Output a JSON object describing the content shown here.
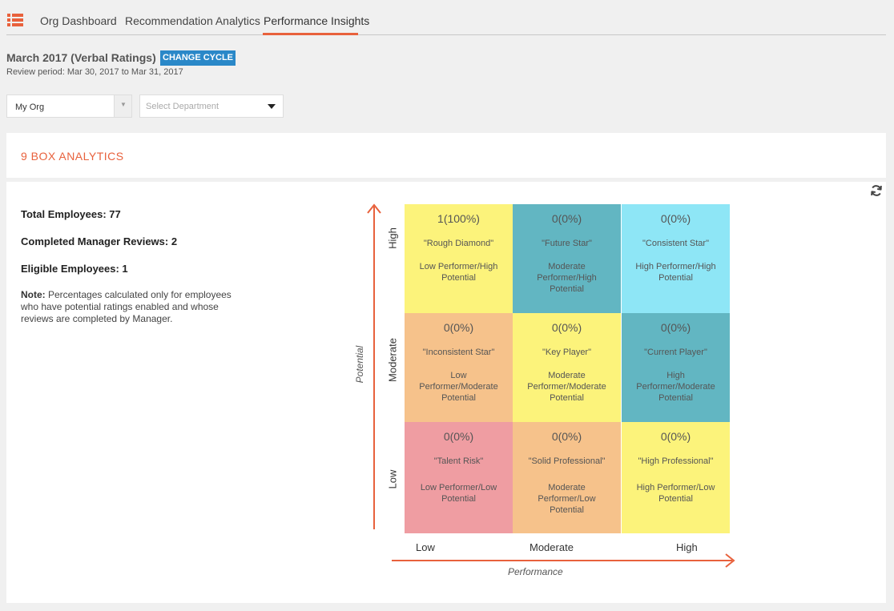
{
  "nav": {
    "tabs": [
      {
        "label": "Org Dashboard",
        "active": false
      },
      {
        "label": "Recommendation Analytics",
        "active": false
      },
      {
        "label": "Performance Insights",
        "active": true
      }
    ]
  },
  "cycle": {
    "title": "March 2017 (Verbal Ratings)",
    "change_label": "CHANGE CYCLE",
    "review_period": "Review period: Mar 30, 2017 to Mar 31, 2017"
  },
  "filters": {
    "org_value": "My Org",
    "dept_placeholder": "Select Department"
  },
  "panel": {
    "title": "9 BOX ANALYTICS"
  },
  "stats": {
    "total": "Total Employees: 77",
    "completed": "Completed Manager Reviews: 2",
    "eligible": "Eligible Employees: 1",
    "note_label": "Note:",
    "note_text": " Percentages calculated only for employees who have potential ratings enabled and whose reviews are completed by Manager."
  },
  "axes": {
    "y_title": "Potential",
    "x_title": "Performance",
    "y_levels": [
      "High",
      "Moderate",
      "Low"
    ],
    "x_levels": [
      "Low",
      "Moderate",
      "High"
    ]
  },
  "boxes": [
    {
      "count": "1(100%)",
      "name": "\"Rough Diamond\"",
      "desc": "Low Performer/High Potential",
      "color": "#fcf37b"
    },
    {
      "count": "0(0%)",
      "name": "\"Future Star\"",
      "desc": "Moderate Performer/High Potential",
      "color": "#62b6c2"
    },
    {
      "count": "0(0%)",
      "name": "\"Consistent Star\"",
      "desc": "High Performer/High Potential",
      "color": "#8ee6f6"
    },
    {
      "count": "0(0%)",
      "name": "\"Inconsistent Star\"",
      "desc": "Low Performer/Moderate Potential",
      "color": "#f6c28b"
    },
    {
      "count": "0(0%)",
      "name": "\"Key Player\"",
      "desc": "Moderate Performer/Moderate Potential",
      "color": "#fcf37b"
    },
    {
      "count": "0(0%)",
      "name": "\"Current Player\"",
      "desc": "High Performer/Moderate Potential",
      "color": "#62b6c2"
    },
    {
      "count": "0(0%)",
      "name": "\"Talent Risk\"",
      "desc": "Low Performer/Low Potential",
      "color": "#ef9da2"
    },
    {
      "count": "0(0%)",
      "name": "\"Solid Professional\"",
      "desc": "Moderate Performer/Low Potential",
      "color": "#f6c28b"
    },
    {
      "count": "0(0%)",
      "name": "\"High Professional\"",
      "desc": "High Performer/Low Potential",
      "color": "#fcf37b"
    }
  ],
  "accent_color": "#e8613c"
}
